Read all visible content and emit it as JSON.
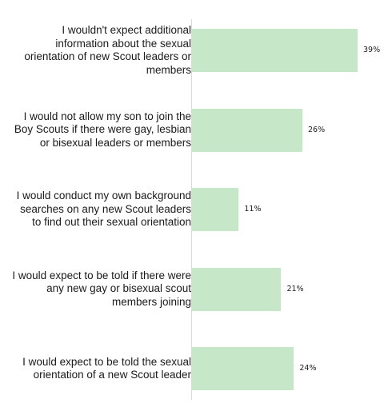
{
  "chart_data": {
    "type": "bar",
    "orientation": "horizontal",
    "categories": [
      "I wouldn't expect additional information about the sexual orientation of new Scout leaders or members",
      "I would not allow my son to join the Boy Scouts if there were gay, lesbian or bisexual leaders or members",
      "I would conduct my own background searches on any new Scout leaders to find out their sexual orientation",
      "I would expect to be told if there were any new gay or bisexual scout members joining",
      "I would expect to be told the sexual orientation of a new Scout leader"
    ],
    "category_lines": [
      [
        "I wouldn't expect additional",
        "information about the sexual",
        "orientation of new Scout leaders or",
        "members"
      ],
      [
        "I would not allow my son to join the",
        "Boy Scouts if there were gay, lesbian",
        "or bisexual leaders or members"
      ],
      [
        "I would conduct my own background",
        "searches on any new Scout leaders",
        "to find out their sexual orientation"
      ],
      [
        "I would expect to be told if there were",
        "any new gay or bisexual scout",
        "members joining"
      ],
      [
        "I would expect to be told the sexual",
        "orientation of a new Scout leader"
      ]
    ],
    "values": [
      39,
      26,
      11,
      21,
      24
    ],
    "value_labels": [
      "39%",
      "26%",
      "11%",
      "21%",
      "24%"
    ],
    "unit": "%",
    "xlim": [
      0,
      40
    ],
    "bar_color": "#c6e8c9",
    "grid": false,
    "legend": "none"
  }
}
